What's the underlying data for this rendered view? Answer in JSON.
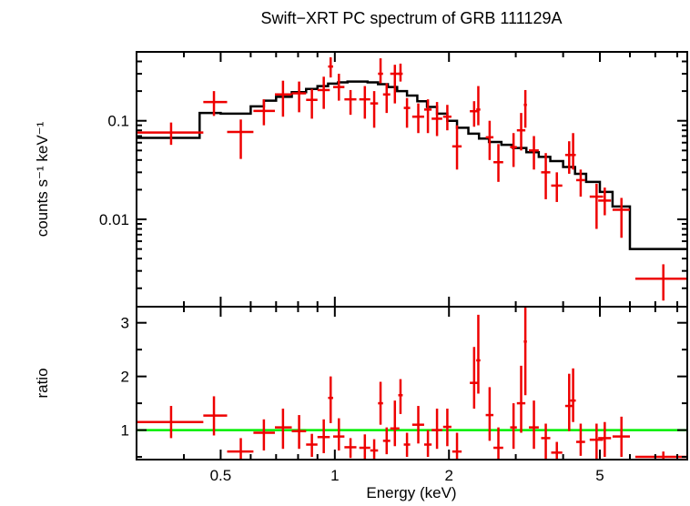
{
  "chart_data": [
    {
      "type": "scatter",
      "panel": "spectrum",
      "title": "Swift−XRT PC spectrum of GRB 111129A",
      "xlabel": "",
      "ylabel": "counts s⁻¹ keV⁻¹",
      "xscale": "log",
      "yscale": "log",
      "xlim": [
        0.3,
        8.5
      ],
      "ylim": [
        0.0013,
        0.5
      ],
      "yticks": [
        {
          "value": 0.1,
          "label": "0.1"
        },
        {
          "value": 0.01,
          "label": "0.01"
        }
      ],
      "colors": {
        "data": "#ee0000",
        "model": "#000000"
      },
      "series": [
        {
          "kind": "data-points",
          "points": [
            {
              "x": 0.37,
              "xlo": 0.3,
              "xhi": 0.45,
              "y": 0.076,
              "ylo": 0.057,
              "yhi": 0.096
            },
            {
              "x": 0.48,
              "xlo": 0.45,
              "xhi": 0.52,
              "y": 0.155,
              "ylo": 0.112,
              "yhi": 0.2
            },
            {
              "x": 0.565,
              "xlo": 0.52,
              "xhi": 0.61,
              "y": 0.077,
              "ylo": 0.041,
              "yhi": 0.103
            },
            {
              "x": 0.65,
              "xlo": 0.61,
              "xhi": 0.695,
              "y": 0.126,
              "ylo": 0.09,
              "yhi": 0.165
            },
            {
              "x": 0.73,
              "xlo": 0.695,
              "xhi": 0.77,
              "y": 0.185,
              "ylo": 0.11,
              "yhi": 0.255
            },
            {
              "x": 0.805,
              "xlo": 0.77,
              "xhi": 0.84,
              "y": 0.19,
              "ylo": 0.122,
              "yhi": 0.25
            },
            {
              "x": 0.87,
              "xlo": 0.84,
              "xhi": 0.9,
              "y": 0.163,
              "ylo": 0.105,
              "yhi": 0.21
            },
            {
              "x": 0.935,
              "xlo": 0.9,
              "xhi": 0.97,
              "y": 0.205,
              "ylo": 0.132,
              "yhi": 0.28
            },
            {
              "x": 0.975,
              "xlo": 0.96,
              "xhi": 0.99,
              "y": 0.355,
              "ylo": 0.275,
              "yhi": 0.44
            },
            {
              "x": 1.025,
              "xlo": 0.99,
              "xhi": 1.06,
              "y": 0.22,
              "ylo": 0.16,
              "yhi": 0.3
            },
            {
              "x": 1.1,
              "xlo": 1.06,
              "xhi": 1.14,
              "y": 0.165,
              "ylo": 0.115,
              "yhi": 0.205
            },
            {
              "x": 1.2,
              "xlo": 1.16,
              "xhi": 1.24,
              "y": 0.165,
              "ylo": 0.105,
              "yhi": 0.225
            },
            {
              "x": 1.27,
              "xlo": 1.24,
              "xhi": 1.3,
              "y": 0.15,
              "ylo": 0.085,
              "yhi": 0.2
            },
            {
              "x": 1.32,
              "xlo": 1.3,
              "xhi": 1.34,
              "y": 0.3,
              "ylo": 0.24,
              "yhi": 0.43
            },
            {
              "x": 1.37,
              "xlo": 1.34,
              "xhi": 1.4,
              "y": 0.185,
              "ylo": 0.12,
              "yhi": 0.24
            },
            {
              "x": 1.44,
              "xlo": 1.4,
              "xhi": 1.48,
              "y": 0.3,
              "ylo": 0.15,
              "yhi": 0.37
            },
            {
              "x": 1.49,
              "xlo": 1.47,
              "xhi": 1.51,
              "y": 0.3,
              "ylo": 0.25,
              "yhi": 0.38
            },
            {
              "x": 1.55,
              "xlo": 1.52,
              "xhi": 1.58,
              "y": 0.135,
              "ylo": 0.085,
              "yhi": 0.17
            },
            {
              "x": 1.66,
              "xlo": 1.6,
              "xhi": 1.72,
              "y": 0.11,
              "ylo": 0.075,
              "yhi": 0.15
            },
            {
              "x": 1.76,
              "xlo": 1.72,
              "xhi": 1.8,
              "y": 0.13,
              "ylo": 0.075,
              "yhi": 0.165
            },
            {
              "x": 1.86,
              "xlo": 1.8,
              "xhi": 1.92,
              "y": 0.105,
              "ylo": 0.07,
              "yhi": 0.155
            },
            {
              "x": 1.98,
              "xlo": 1.93,
              "xhi": 2.03,
              "y": 0.11,
              "ylo": 0.08,
              "yhi": 0.145
            },
            {
              "x": 2.1,
              "xlo": 2.04,
              "xhi": 2.16,
              "y": 0.055,
              "ylo": 0.032,
              "yhi": 0.09
            },
            {
              "x": 2.33,
              "xlo": 2.27,
              "xhi": 2.39,
              "y": 0.125,
              "ylo": 0.087,
              "yhi": 0.158
            },
            {
              "x": 2.39,
              "xlo": 2.36,
              "xhi": 2.42,
              "y": 0.13,
              "ylo": 0.09,
              "yhi": 0.225
            },
            {
              "x": 2.56,
              "xlo": 2.5,
              "xhi": 2.62,
              "y": 0.068,
              "ylo": 0.04,
              "yhi": 0.1
            },
            {
              "x": 2.7,
              "xlo": 2.62,
              "xhi": 2.78,
              "y": 0.038,
              "ylo": 0.024,
              "yhi": 0.058
            },
            {
              "x": 2.96,
              "xlo": 2.9,
              "xhi": 3.02,
              "y": 0.054,
              "ylo": 0.034,
              "yhi": 0.075
            },
            {
              "x": 3.1,
              "xlo": 3.02,
              "xhi": 3.18,
              "y": 0.08,
              "ylo": 0.05,
              "yhi": 0.12
            },
            {
              "x": 3.18,
              "xlo": 3.15,
              "xhi": 3.21,
              "y": 0.145,
              "ylo": 0.085,
              "yhi": 0.205
            },
            {
              "x": 3.35,
              "xlo": 3.25,
              "xhi": 3.45,
              "y": 0.05,
              "ylo": 0.032,
              "yhi": 0.07
            },
            {
              "x": 3.6,
              "xlo": 3.5,
              "xhi": 3.7,
              "y": 0.03,
              "ylo": 0.016,
              "yhi": 0.047
            },
            {
              "x": 3.85,
              "xlo": 3.72,
              "xhi": 3.98,
              "y": 0.022,
              "ylo": 0.015,
              "yhi": 0.03
            },
            {
              "x": 4.15,
              "xlo": 4.05,
              "xhi": 4.25,
              "y": 0.045,
              "ylo": 0.029,
              "yhi": 0.062
            },
            {
              "x": 4.25,
              "xlo": 4.18,
              "xhi": 4.32,
              "y": 0.045,
              "ylo": 0.032,
              "yhi": 0.075
            },
            {
              "x": 4.45,
              "xlo": 4.33,
              "xhi": 4.57,
              "y": 0.025,
              "ylo": 0.017,
              "yhi": 0.032
            },
            {
              "x": 4.9,
              "xlo": 4.7,
              "xhi": 5.1,
              "y": 0.017,
              "ylo": 0.008,
              "yhi": 0.023
            },
            {
              "x": 5.15,
              "xlo": 4.95,
              "xhi": 5.35,
              "y": 0.0155,
              "ylo": 0.011,
              "yhi": 0.021
            },
            {
              "x": 5.7,
              "xlo": 5.4,
              "xhi": 6.0,
              "y": 0.0125,
              "ylo": 0.0065,
              "yhi": 0.0165
            },
            {
              "x": 7.35,
              "xlo": 6.2,
              "xhi": 8.5,
              "y": 0.0025,
              "ylo": 0.0015,
              "yhi": 0.0035
            }
          ]
        },
        {
          "kind": "model-step",
          "steps": [
            {
              "xlo": 0.3,
              "xhi": 0.44,
              "y": 0.067
            },
            {
              "xlo": 0.44,
              "xhi": 0.5,
              "y": 0.12
            },
            {
              "xlo": 0.5,
              "xhi": 0.6,
              "y": 0.118
            },
            {
              "xlo": 0.6,
              "xhi": 0.65,
              "y": 0.14
            },
            {
              "xlo": 0.65,
              "xhi": 0.7,
              "y": 0.16
            },
            {
              "xlo": 0.7,
              "xhi": 0.77,
              "y": 0.175
            },
            {
              "xlo": 0.77,
              "xhi": 0.84,
              "y": 0.195
            },
            {
              "xlo": 0.84,
              "xhi": 0.9,
              "y": 0.21
            },
            {
              "xlo": 0.9,
              "xhi": 0.96,
              "y": 0.225
            },
            {
              "xlo": 0.96,
              "xhi": 1.02,
              "y": 0.238
            },
            {
              "xlo": 1.02,
              "xhi": 1.08,
              "y": 0.245
            },
            {
              "xlo": 1.08,
              "xhi": 1.15,
              "y": 0.25
            },
            {
              "xlo": 1.15,
              "xhi": 1.22,
              "y": 0.25
            },
            {
              "xlo": 1.22,
              "xhi": 1.3,
              "y": 0.245
            },
            {
              "xlo": 1.3,
              "xhi": 1.38,
              "y": 0.235
            },
            {
              "xlo": 1.38,
              "xhi": 1.46,
              "y": 0.22
            },
            {
              "xlo": 1.46,
              "xhi": 1.55,
              "y": 0.2
            },
            {
              "xlo": 1.55,
              "xhi": 1.65,
              "y": 0.18
            },
            {
              "xlo": 1.65,
              "xhi": 1.75,
              "y": 0.158
            },
            {
              "xlo": 1.75,
              "xhi": 1.86,
              "y": 0.138
            },
            {
              "xlo": 1.86,
              "xhi": 1.98,
              "y": 0.118
            },
            {
              "xlo": 1.98,
              "xhi": 2.1,
              "y": 0.1
            },
            {
              "xlo": 2.1,
              "xhi": 2.25,
              "y": 0.085
            },
            {
              "xlo": 2.25,
              "xhi": 2.4,
              "y": 0.074
            },
            {
              "xlo": 2.4,
              "xhi": 2.55,
              "y": 0.066
            },
            {
              "xlo": 2.55,
              "xhi": 2.75,
              "y": 0.061
            },
            {
              "xlo": 2.75,
              "xhi": 2.95,
              "y": 0.057
            },
            {
              "xlo": 2.95,
              "xhi": 3.2,
              "y": 0.053
            },
            {
              "xlo": 3.2,
              "xhi": 3.45,
              "y": 0.048
            },
            {
              "xlo": 3.45,
              "xhi": 3.7,
              "y": 0.043
            },
            {
              "xlo": 3.7,
              "xhi": 4.0,
              "y": 0.039
            },
            {
              "xlo": 4.0,
              "xhi": 4.3,
              "y": 0.034
            },
            {
              "xlo": 4.3,
              "xhi": 4.6,
              "y": 0.029
            },
            {
              "xlo": 4.6,
              "xhi": 5.0,
              "y": 0.024
            },
            {
              "xlo": 5.0,
              "xhi": 5.4,
              "y": 0.019
            },
            {
              "xlo": 5.4,
              "xhi": 6.0,
              "y": 0.0135
            },
            {
              "xlo": 6.0,
              "xhi": 8.5,
              "y": 0.005
            }
          ]
        }
      ]
    },
    {
      "type": "scatter",
      "panel": "ratio",
      "xlabel": "Energy (keV)",
      "ylabel": "ratio",
      "xscale": "log",
      "yscale": "linear",
      "xlim": [
        0.3,
        8.5
      ],
      "ylim": [
        0.45,
        3.3
      ],
      "xticks": [
        {
          "value": 0.5,
          "label": "0.5"
        },
        {
          "value": 1,
          "label": "1"
        },
        {
          "value": 2,
          "label": "2"
        },
        {
          "value": 5,
          "label": "5"
        }
      ],
      "yticks": [
        {
          "value": 1,
          "label": "1"
        },
        {
          "value": 2,
          "label": "2"
        },
        {
          "value": 3,
          "label": "3"
        }
      ],
      "reference_line": {
        "y": 1.0,
        "color": "#00ee00"
      },
      "colors": {
        "data": "#ee0000"
      },
      "points": [
        {
          "x": 0.37,
          "xlo": 0.3,
          "xhi": 0.45,
          "y": 1.15,
          "ylo": 0.85,
          "yhi": 1.45
        },
        {
          "x": 0.48,
          "xlo": 0.45,
          "xhi": 0.52,
          "y": 1.27,
          "ylo": 0.9,
          "yhi": 1.63
        },
        {
          "x": 0.565,
          "xlo": 0.52,
          "xhi": 0.61,
          "y": 0.6,
          "ylo": 0.45,
          "yhi": 0.85
        },
        {
          "x": 0.65,
          "xlo": 0.61,
          "xhi": 0.695,
          "y": 0.95,
          "ylo": 0.62,
          "yhi": 1.2
        },
        {
          "x": 0.73,
          "xlo": 0.695,
          "xhi": 0.77,
          "y": 1.05,
          "ylo": 0.65,
          "yhi": 1.4
        },
        {
          "x": 0.805,
          "xlo": 0.77,
          "xhi": 0.84,
          "y": 0.98,
          "ylo": 0.65,
          "yhi": 1.28
        },
        {
          "x": 0.87,
          "xlo": 0.84,
          "xhi": 0.9,
          "y": 0.73,
          "ylo": 0.5,
          "yhi": 0.93
        },
        {
          "x": 0.935,
          "xlo": 0.9,
          "xhi": 0.97,
          "y": 0.87,
          "ylo": 0.57,
          "yhi": 1.2
        },
        {
          "x": 0.975,
          "xlo": 0.96,
          "xhi": 0.99,
          "y": 1.6,
          "ylo": 1.13,
          "yhi": 2.0
        },
        {
          "x": 1.025,
          "xlo": 0.99,
          "xhi": 1.06,
          "y": 0.88,
          "ylo": 0.62,
          "yhi": 1.22
        },
        {
          "x": 1.1,
          "xlo": 1.06,
          "xhi": 1.14,
          "y": 0.68,
          "ylo": 0.48,
          "yhi": 0.85
        },
        {
          "x": 1.2,
          "xlo": 1.16,
          "xhi": 1.24,
          "y": 0.67,
          "ylo": 0.45,
          "yhi": 0.92
        },
        {
          "x": 1.27,
          "xlo": 1.24,
          "xhi": 1.3,
          "y": 0.62,
          "ylo": 0.45,
          "yhi": 0.83
        },
        {
          "x": 1.32,
          "xlo": 1.3,
          "xhi": 1.34,
          "y": 1.5,
          "ylo": 1.1,
          "yhi": 1.9
        },
        {
          "x": 1.37,
          "xlo": 1.34,
          "xhi": 1.4,
          "y": 0.8,
          "ylo": 0.55,
          "yhi": 1.05
        },
        {
          "x": 1.44,
          "xlo": 1.4,
          "xhi": 1.48,
          "y": 1.03,
          "ylo": 0.7,
          "yhi": 1.55
        },
        {
          "x": 1.49,
          "xlo": 1.47,
          "xhi": 1.51,
          "y": 1.65,
          "ylo": 1.3,
          "yhi": 1.95
        },
        {
          "x": 1.55,
          "xlo": 1.52,
          "xhi": 1.58,
          "y": 0.73,
          "ylo": 0.5,
          "yhi": 0.95
        },
        {
          "x": 1.66,
          "xlo": 1.6,
          "xhi": 1.72,
          "y": 1.1,
          "ylo": 0.75,
          "yhi": 1.45
        },
        {
          "x": 1.76,
          "xlo": 1.72,
          "xhi": 1.8,
          "y": 0.73,
          "ylo": 0.5,
          "yhi": 1.0
        },
        {
          "x": 1.86,
          "xlo": 1.8,
          "xhi": 1.92,
          "y": 1.0,
          "ylo": 0.65,
          "yhi": 1.4
        },
        {
          "x": 1.98,
          "xlo": 1.93,
          "xhi": 2.03,
          "y": 1.06,
          "ylo": 0.7,
          "yhi": 1.4
        },
        {
          "x": 2.1,
          "xlo": 2.04,
          "xhi": 2.16,
          "y": 0.6,
          "ylo": 0.45,
          "yhi": 0.95
        },
        {
          "x": 2.33,
          "xlo": 2.27,
          "xhi": 2.39,
          "y": 1.88,
          "ylo": 1.4,
          "yhi": 2.55
        },
        {
          "x": 2.39,
          "xlo": 2.36,
          "xhi": 2.42,
          "y": 2.3,
          "ylo": 1.68,
          "yhi": 3.15
        },
        {
          "x": 2.56,
          "xlo": 2.5,
          "xhi": 2.62,
          "y": 1.28,
          "ylo": 0.8,
          "yhi": 1.8
        },
        {
          "x": 2.7,
          "xlo": 2.62,
          "xhi": 2.78,
          "y": 0.67,
          "ylo": 0.45,
          "yhi": 1.05
        },
        {
          "x": 2.96,
          "xlo": 2.9,
          "xhi": 3.02,
          "y": 1.05,
          "ylo": 0.65,
          "yhi": 1.5
        },
        {
          "x": 3.1,
          "xlo": 3.02,
          "xhi": 3.18,
          "y": 1.5,
          "ylo": 0.95,
          "yhi": 2.2
        },
        {
          "x": 3.18,
          "xlo": 3.15,
          "xhi": 3.21,
          "y": 2.65,
          "ylo": 1.65,
          "yhi": 3.3
        },
        {
          "x": 3.35,
          "xlo": 3.25,
          "xhi": 3.45,
          "y": 1.05,
          "ylo": 0.65,
          "yhi": 1.55
        },
        {
          "x": 3.6,
          "xlo": 3.5,
          "xhi": 3.7,
          "y": 0.85,
          "ylo": 0.45,
          "yhi": 1.12
        },
        {
          "x": 3.85,
          "xlo": 3.72,
          "xhi": 3.98,
          "y": 0.58,
          "ylo": 0.45,
          "yhi": 0.78
        },
        {
          "x": 4.15,
          "xlo": 4.05,
          "xhi": 4.25,
          "y": 1.45,
          "ylo": 0.98,
          "yhi": 2.05
        },
        {
          "x": 4.25,
          "xlo": 4.18,
          "xhi": 4.32,
          "y": 1.55,
          "ylo": 1.15,
          "yhi": 2.15
        },
        {
          "x": 4.45,
          "xlo": 4.33,
          "xhi": 4.57,
          "y": 0.78,
          "ylo": 0.52,
          "yhi": 1.12
        },
        {
          "x": 4.9,
          "xlo": 4.7,
          "xhi": 5.1,
          "y": 0.82,
          "ylo": 0.45,
          "yhi": 1.12
        },
        {
          "x": 5.15,
          "xlo": 4.95,
          "xhi": 5.35,
          "y": 0.85,
          "ylo": 0.5,
          "yhi": 1.15
        },
        {
          "x": 5.7,
          "xlo": 5.4,
          "xhi": 6.0,
          "y": 0.88,
          "ylo": 0.5,
          "yhi": 1.25
        },
        {
          "x": 7.35,
          "xlo": 6.2,
          "xhi": 8.5,
          "y": 0.5,
          "ylo": 0.45,
          "yhi": 0.6
        }
      ]
    }
  ]
}
